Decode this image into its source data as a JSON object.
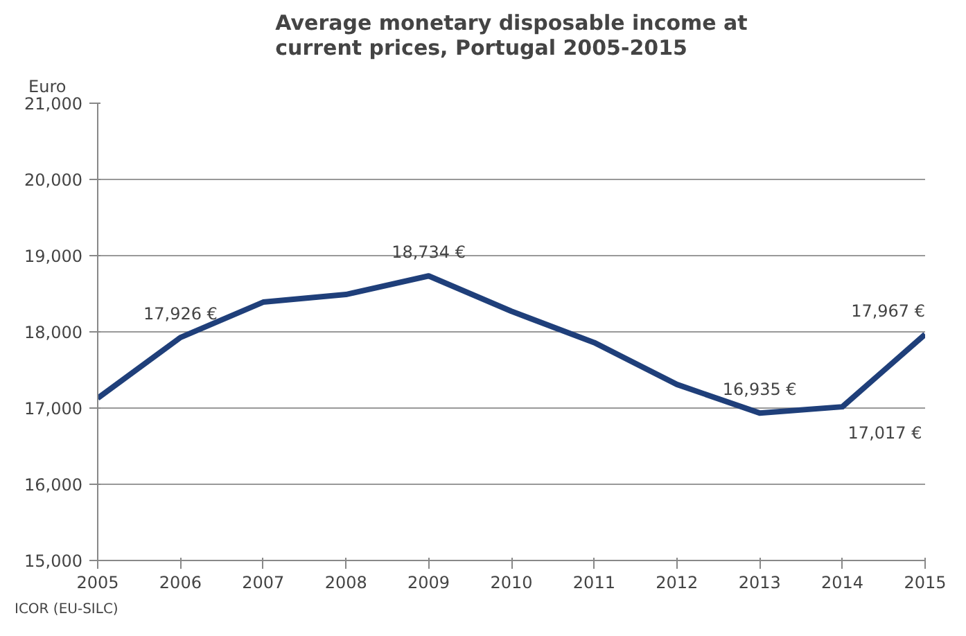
{
  "chart_data": {
    "type": "line",
    "title": "Average monetary disposable income at current prices, Portugal 2005-2015",
    "ylabel": "Euro",
    "x": [
      2005,
      2006,
      2007,
      2008,
      2009,
      2010,
      2011,
      2012,
      2013,
      2014,
      2015
    ],
    "series": [
      {
        "color": "#1f3f7a",
        "values": [
          17130,
          17926,
          18390,
          18490,
          18734,
          18270,
          17860,
          17310,
          16935,
          17017,
          17967
        ],
        "value_labels": [
          null,
          "17,926 €",
          null,
          null,
          "18,734 €",
          null,
          null,
          null,
          "16,935 €",
          "17,017 €",
          "17,967 €"
        ]
      }
    ],
    "xlim": [
      2005,
      2015
    ],
    "xticks": [
      2005,
      2006,
      2007,
      2008,
      2009,
      2010,
      2011,
      2012,
      2013,
      2014,
      2015
    ],
    "ylim": [
      15000,
      21000
    ],
    "yticks": [
      {
        "value": 15000,
        "label": "15,000"
      },
      {
        "value": 16000,
        "label": "16,000"
      },
      {
        "value": 17000,
        "label": "17,000"
      },
      {
        "value": 18000,
        "label": "18,000"
      },
      {
        "value": 19000,
        "label": "19,000"
      },
      {
        "value": 20000,
        "label": "20,000"
      },
      {
        "value": 21000,
        "label": "21,000"
      }
    ],
    "grid": "y",
    "line_style": "solid",
    "marker": "none",
    "annotations": [
      "ICOR (EU-SILC)"
    ]
  }
}
